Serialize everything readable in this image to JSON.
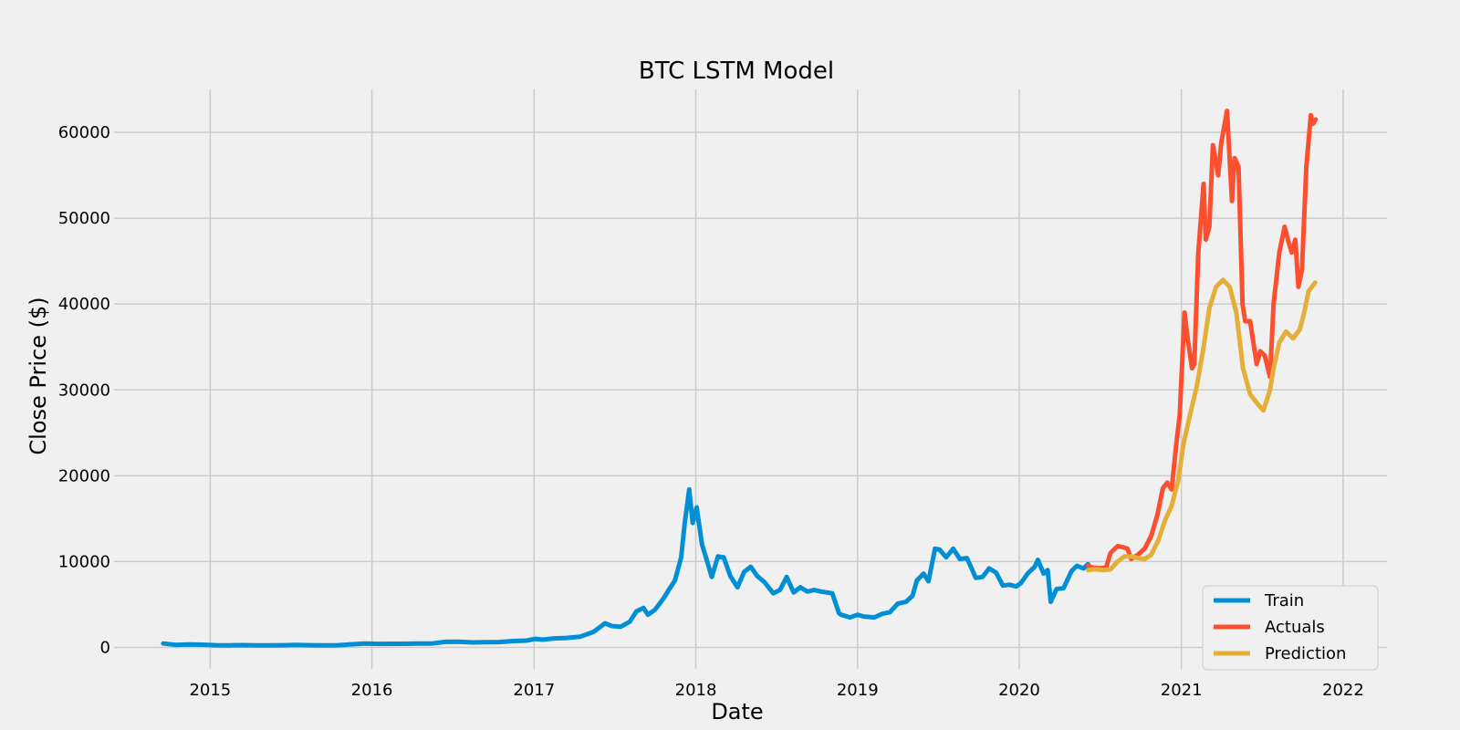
{
  "chart_data": {
    "type": "line",
    "title": "BTC LSTM Model",
    "xlabel": "Date",
    "ylabel": "Close Price ($)",
    "xlim": [
      "2014-05-29",
      "2022-04-10"
    ],
    "ylim": [
      -2500,
      65000
    ],
    "x_ticks": [
      "2015",
      "2016",
      "2017",
      "2018",
      "2019",
      "2020",
      "2021",
      "2022"
    ],
    "y_ticks": [
      0,
      10000,
      20000,
      30000,
      40000,
      50000,
      60000
    ],
    "grid": true,
    "legend_position": "bottom-right",
    "colors": {
      "background": "#f0f0f0",
      "grid": "#cbcbcb",
      "Train": "#008fd5",
      "Actuals": "#fc4f30",
      "Prediction": "#e5ae38"
    },
    "series": [
      {
        "name": "Train",
        "x": [
          "2014-09-17",
          "2014-10-15",
          "2014-11-15",
          "2014-12-15",
          "2015-01-14",
          "2015-02-15",
          "2015-03-15",
          "2015-04-15",
          "2015-05-15",
          "2015-06-15",
          "2015-07-15",
          "2015-08-15",
          "2015-09-15",
          "2015-10-15",
          "2015-11-05",
          "2015-12-15",
          "2016-01-15",
          "2016-02-15",
          "2016-03-15",
          "2016-04-15",
          "2016-05-15",
          "2016-06-15",
          "2016-07-15",
          "2016-08-15",
          "2016-09-15",
          "2016-10-15",
          "2016-11-15",
          "2016-12-15",
          "2017-01-04",
          "2017-01-20",
          "2017-02-15",
          "2017-03-15",
          "2017-04-15",
          "2017-05-15",
          "2017-06-10",
          "2017-06-25",
          "2017-07-15",
          "2017-08-05",
          "2017-08-20",
          "2017-09-05",
          "2017-09-15",
          "2017-10-01",
          "2017-10-20",
          "2017-11-01",
          "2017-11-15",
          "2017-11-29",
          "2017-12-07",
          "2017-12-17",
          "2017-12-25",
          "2018-01-03",
          "2018-01-15",
          "2018-01-25",
          "2018-02-06",
          "2018-02-20",
          "2018-03-05",
          "2018-03-20",
          "2018-04-05",
          "2018-04-20",
          "2018-05-05",
          "2018-05-20",
          "2018-06-05",
          "2018-06-25",
          "2018-07-10",
          "2018-07-25",
          "2018-08-10",
          "2018-08-25",
          "2018-09-10",
          "2018-09-25",
          "2018-10-10",
          "2018-10-25",
          "2018-11-05",
          "2018-11-20",
          "2018-11-25",
          "2018-12-15",
          "2019-01-01",
          "2019-01-15",
          "2019-02-08",
          "2019-02-25",
          "2019-03-15",
          "2019-04-02",
          "2019-04-20",
          "2019-05-05",
          "2019-05-15",
          "2019-05-30",
          "2019-06-10",
          "2019-06-25",
          "2019-07-05",
          "2019-07-20",
          "2019-08-05",
          "2019-08-20",
          "2019-09-05",
          "2019-09-25",
          "2019-10-10",
          "2019-10-25",
          "2019-11-10",
          "2019-11-25",
          "2019-12-10",
          "2019-12-25",
          "2020-01-05",
          "2020-01-20",
          "2020-02-05",
          "2020-02-12",
          "2020-02-25",
          "2020-03-05",
          "2020-03-12",
          "2020-03-25",
          "2020-04-10",
          "2020-04-28",
          "2020-05-10",
          "2020-05-25",
          "2020-06-04"
        ],
        "y": [
          450,
          300,
          350,
          320,
          250,
          240,
          260,
          230,
          240,
          250,
          290,
          250,
          240,
          250,
          320,
          450,
          410,
          420,
          420,
          450,
          450,
          650,
          660,
          580,
          610,
          630,
          740,
          790,
          1000,
          900,
          1050,
          1100,
          1250,
          1800,
          2800,
          2500,
          2400,
          3000,
          4200,
          4600,
          3800,
          4400,
          5700,
          6700,
          7800,
          10500,
          14500,
          18400,
          14500,
          16300,
          12000,
          10300,
          8200,
          10600,
          10500,
          8300,
          7000,
          8800,
          9400,
          8300,
          7600,
          6300,
          6700,
          8200,
          6400,
          7000,
          6500,
          6700,
          6500,
          6400,
          6300,
          4000,
          3800,
          3500,
          3800,
          3600,
          3500,
          3900,
          4100,
          5100,
          5300,
          6000,
          7800,
          8600,
          7700,
          11500,
          11400,
          10500,
          11500,
          10300,
          10400,
          8100,
          8200,
          9200,
          8700,
          7200,
          7300,
          7100,
          7500,
          8600,
          9400,
          10200,
          8600,
          9000,
          5300,
          6800,
          6900,
          8900,
          9500,
          9200,
          9700
        ]
      },
      {
        "name": "Actuals",
        "x": [
          "2020-06-04",
          "2020-06-15",
          "2020-07-01",
          "2020-07-15",
          "2020-07-25",
          "2020-08-10",
          "2020-08-20",
          "2020-09-01",
          "2020-09-10",
          "2020-09-25",
          "2020-10-10",
          "2020-10-25",
          "2020-11-08",
          "2020-11-20",
          "2020-11-30",
          "2020-12-10",
          "2020-12-20",
          "2020-12-28",
          "2021-01-08",
          "2021-01-15",
          "2021-01-25",
          "2021-01-30",
          "2021-02-08",
          "2021-02-20",
          "2021-02-25",
          "2021-03-05",
          "2021-03-13",
          "2021-03-25",
          "2021-04-01",
          "2021-04-14",
          "2021-04-25",
          "2021-05-01",
          "2021-05-10",
          "2021-05-19",
          "2021-05-25",
          "2021-06-05",
          "2021-06-20",
          "2021-06-28",
          "2021-07-08",
          "2021-07-20",
          "2021-07-28",
          "2021-08-10",
          "2021-08-22",
          "2021-09-01",
          "2021-09-07",
          "2021-09-15",
          "2021-09-22",
          "2021-09-30",
          "2021-10-10",
          "2021-10-20",
          "2021-10-25",
          "2021-10-31"
        ],
        "y": [
          9500,
          9300,
          9200,
          9300,
          11000,
          11800,
          11700,
          11500,
          10300,
          10800,
          11500,
          13000,
          15500,
          18500,
          19200,
          18400,
          23500,
          27000,
          39000,
          36000,
          32500,
          33000,
          46000,
          54000,
          47500,
          49000,
          58500,
          55000,
          58800,
          62500,
          52000,
          57000,
          56000,
          40000,
          38000,
          38000,
          33000,
          34500,
          34000,
          31500,
          40000,
          46000,
          49000,
          47000,
          46000,
          47500,
          42000,
          44000,
          56000,
          62000,
          61000,
          61500
        ]
      },
      {
        "name": "Prediction",
        "x": [
          "2020-06-04",
          "2020-06-20",
          "2020-07-10",
          "2020-07-25",
          "2020-08-10",
          "2020-08-25",
          "2020-09-10",
          "2020-09-25",
          "2020-10-10",
          "2020-10-25",
          "2020-11-10",
          "2020-11-25",
          "2020-12-10",
          "2020-12-25",
          "2021-01-05",
          "2021-01-20",
          "2021-02-05",
          "2021-02-20",
          "2021-03-05",
          "2021-03-20",
          "2021-04-05",
          "2021-04-20",
          "2021-05-05",
          "2021-05-20",
          "2021-06-05",
          "2021-06-20",
          "2021-07-05",
          "2021-07-20",
          "2021-07-28",
          "2021-08-10",
          "2021-08-25",
          "2021-09-10",
          "2021-09-25",
          "2021-10-05",
          "2021-10-15",
          "2021-10-30"
        ],
        "y": [
          9000,
          9100,
          9000,
          9100,
          10000,
          10600,
          10600,
          10400,
          10300,
          10800,
          12500,
          14800,
          16500,
          19500,
          23500,
          27000,
          30500,
          35000,
          39500,
          42000,
          42800,
          42000,
          39000,
          32500,
          29500,
          28500,
          27600,
          30000,
          32500,
          35500,
          36800,
          36000,
          37000,
          39000,
          41500,
          42500
        ]
      }
    ]
  }
}
